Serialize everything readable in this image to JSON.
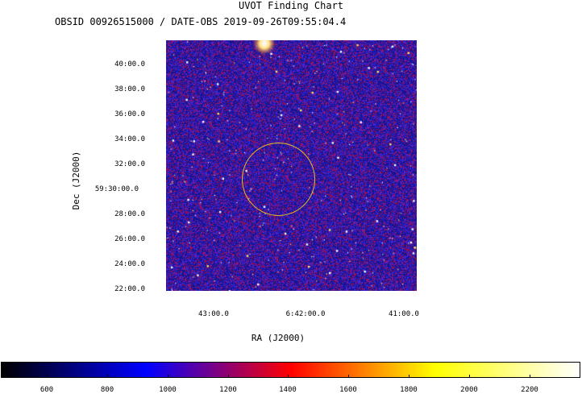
{
  "title": "UVOT Finding Chart",
  "subtitle": "OBSID 00926515000 / DATE-OBS 2019-09-26T09:55:04.4",
  "axes": {
    "ylabel": "Dec (J2000)",
    "xlabel": "RA (J2000)",
    "yticks": [
      "40:00.0",
      "38:00.0",
      "36:00.0",
      "34:00.0",
      "32:00.0",
      "59:30:00.0",
      "28:00.0",
      "26:00.0",
      "24:00.0",
      "22:00.0"
    ],
    "xticks": [
      "43:00.0",
      "6:42:00.0",
      "41:00.0"
    ]
  },
  "colorbar": {
    "ticks": [
      "600",
      "800",
      "1000",
      "1200",
      "1400",
      "1600",
      "1800",
      "2000",
      "2200"
    ],
    "colors": [
      "#000000",
      "#0000ff",
      "#ff0000",
      "#ffff00",
      "#ffffff"
    ]
  },
  "source_circle_color": "#e0c020"
}
